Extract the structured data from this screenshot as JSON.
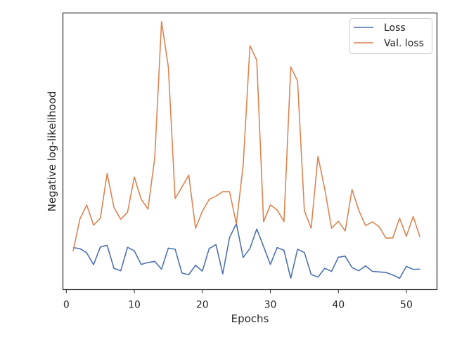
{
  "chart_data": {
    "type": "line",
    "title": "",
    "xlabel": "Epochs",
    "ylabel": "Negative log-likelihood",
    "xlim": [
      -0.5,
      54.5
    ],
    "ylim": [
      0,
      1
    ],
    "xticks": [
      0,
      10,
      20,
      30,
      40,
      50
    ],
    "yticks_shown": false,
    "grid": false,
    "legend_position": "top-right",
    "x": [
      1,
      2,
      3,
      4,
      5,
      6,
      7,
      8,
      9,
      10,
      11,
      12,
      13,
      14,
      15,
      16,
      17,
      18,
      19,
      20,
      21,
      22,
      23,
      24,
      25,
      26,
      27,
      28,
      29,
      30,
      31,
      32,
      33,
      34,
      35,
      36,
      37,
      38,
      39,
      40,
      41,
      42,
      43,
      44,
      45,
      46,
      47,
      48,
      49,
      50,
      51,
      52
    ],
    "series": [
      {
        "name": "Loss",
        "color": "#4c72b0",
        "values": [
          0.152,
          0.148,
          0.133,
          0.09,
          0.154,
          0.16,
          0.077,
          0.068,
          0.153,
          0.14,
          0.091,
          0.098,
          0.102,
          0.074,
          0.15,
          0.146,
          0.06,
          0.054,
          0.088,
          0.067,
          0.148,
          0.163,
          0.057,
          0.188,
          0.239,
          0.116,
          0.149,
          0.219,
          0.156,
          0.091,
          0.152,
          0.142,
          0.041,
          0.146,
          0.134,
          0.055,
          0.045,
          0.077,
          0.066,
          0.117,
          0.121,
          0.08,
          0.068,
          0.086,
          0.066,
          0.064,
          0.062,
          0.053,
          0.041,
          0.084,
          0.073,
          0.074
        ]
      },
      {
        "name": "Val. loss",
        "color": "#dd8452",
        "values": [
          0.139,
          0.256,
          0.306,
          0.233,
          0.258,
          0.42,
          0.297,
          0.254,
          0.28,
          0.407,
          0.327,
          0.291,
          0.476,
          0.969,
          0.805,
          0.329,
          0.371,
          0.414,
          0.222,
          0.283,
          0.326,
          0.338,
          0.354,
          0.354,
          0.238,
          0.449,
          0.882,
          0.829,
          0.245,
          0.306,
          0.288,
          0.246,
          0.805,
          0.754,
          0.285,
          0.222,
          0.482,
          0.363,
          0.222,
          0.247,
          0.212,
          0.362,
          0.287,
          0.231,
          0.245,
          0.227,
          0.186,
          0.187,
          0.258,
          0.193,
          0.264,
          0.19
        ]
      }
    ]
  }
}
